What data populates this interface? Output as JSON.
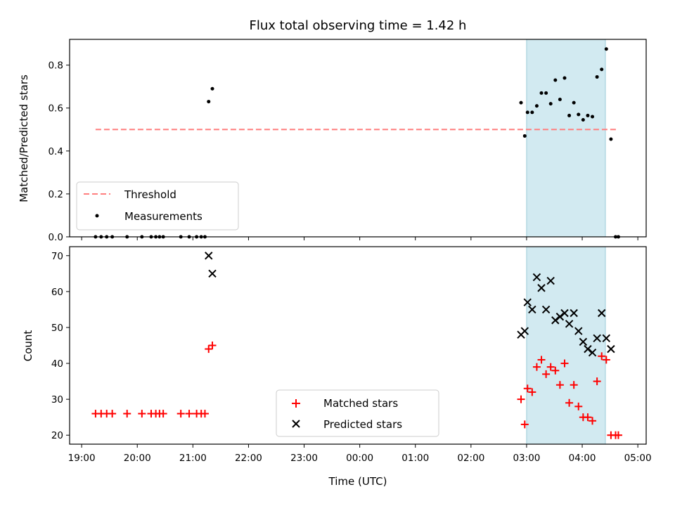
{
  "chart_data": [
    {
      "type": "scatter",
      "title": "Flux total observing time = 1.42 h",
      "ylabel": "Matched/Predicted stars",
      "ylim": [
        0,
        0.92
      ],
      "yticks": [
        "0.0",
        "0.2",
        "0.4",
        "0.6",
        "0.8"
      ],
      "xlim": [
        "2000-01-01T18:47",
        "2000-01-02T05:09"
      ],
      "shaded_interval": [
        "2000-01-02T03:00",
        "2000-01-02T04:25"
      ],
      "grid": false,
      "legend_position": "lower-left",
      "series": [
        {
          "name": "Threshold",
          "style": "dashed-line",
          "color": "#ff7f7f",
          "x": [
            "2000-01-01T19:15",
            "2000-01-02T04:37"
          ],
          "y": [
            0.5,
            0.5
          ]
        },
        {
          "name": "Measurements",
          "style": "dot",
          "color": "#000000",
          "points": [
            [
              "2000-01-01T19:15",
              0
            ],
            [
              "2000-01-01T19:21",
              0
            ],
            [
              "2000-01-01T19:27",
              0
            ],
            [
              "2000-01-01T19:33",
              0
            ],
            [
              "2000-01-01T19:49",
              0
            ],
            [
              "2000-01-01T20:05",
              0
            ],
            [
              "2000-01-01T20:15",
              0
            ],
            [
              "2000-01-01T20:20",
              0
            ],
            [
              "2000-01-01T20:24",
              0
            ],
            [
              "2000-01-01T20:28",
              0
            ],
            [
              "2000-01-01T20:47",
              0
            ],
            [
              "2000-01-01T20:56",
              0
            ],
            [
              "2000-01-01T21:04",
              0
            ],
            [
              "2000-01-01T21:09",
              0
            ],
            [
              "2000-01-01T21:13",
              0
            ],
            [
              "2000-01-01T21:17",
              0.63
            ],
            [
              "2000-01-01T21:21",
              0.69
            ],
            [
              "2000-01-02T02:54",
              0.625
            ],
            [
              "2000-01-02T02:58",
              0.47
            ],
            [
              "2000-01-02T03:01",
              0.58
            ],
            [
              "2000-01-02T03:06",
              0.58
            ],
            [
              "2000-01-02T03:11",
              0.61
            ],
            [
              "2000-01-02T03:16",
              0.67
            ],
            [
              "2000-01-02T03:21",
              0.67
            ],
            [
              "2000-01-02T03:26",
              0.62
            ],
            [
              "2000-01-02T03:31",
              0.73
            ],
            [
              "2000-01-02T03:36",
              0.64
            ],
            [
              "2000-01-02T03:41",
              0.74
            ],
            [
              "2000-01-02T03:46",
              0.565
            ],
            [
              "2000-01-02T03:51",
              0.625
            ],
            [
              "2000-01-02T03:56",
              0.57
            ],
            [
              "2000-01-02T04:01",
              0.545
            ],
            [
              "2000-01-02T04:06",
              0.565
            ],
            [
              "2000-01-02T04:11",
              0.56
            ],
            [
              "2000-01-02T04:16",
              0.745
            ],
            [
              "2000-01-02T04:21",
              0.78
            ],
            [
              "2000-01-02T04:26",
              0.875
            ],
            [
              "2000-01-02T04:31",
              0.455
            ],
            [
              "2000-01-02T04:36",
              0
            ],
            [
              "2000-01-02T04:39",
              0
            ]
          ]
        }
      ]
    },
    {
      "type": "scatter",
      "xlabel": "Time (UTC)",
      "ylabel": "Count",
      "ylim": [
        17.5,
        72.5
      ],
      "yticks": [
        "20",
        "30",
        "40",
        "50",
        "60",
        "70"
      ],
      "xlim": [
        "2000-01-01T18:47",
        "2000-01-02T05:09"
      ],
      "xticks": [
        {
          "x": "2000-01-01T19:00",
          "label": "19:00"
        },
        {
          "x": "2000-01-01T20:00",
          "label": "20:00"
        },
        {
          "x": "2000-01-01T21:00",
          "label": "21:00"
        },
        {
          "x": "2000-01-01T22:00",
          "label": "22:00"
        },
        {
          "x": "2000-01-01T23:00",
          "label": "23:00"
        },
        {
          "x": "2000-01-02T00:00",
          "label": "00:00"
        },
        {
          "x": "2000-01-02T01:00",
          "label": "01:00"
        },
        {
          "x": "2000-01-02T02:00",
          "label": "02:00"
        },
        {
          "x": "2000-01-02T03:00",
          "label": "03:00"
        },
        {
          "x": "2000-01-02T04:00",
          "label": "04:00"
        },
        {
          "x": "2000-01-02T05:00",
          "label": "05:00"
        }
      ],
      "shaded_interval": [
        "2000-01-02T03:00",
        "2000-01-02T04:25"
      ],
      "grid": false,
      "legend_position": "lower-center",
      "series": [
        {
          "name": "Matched stars",
          "marker": "plus",
          "color": "#ff0000",
          "points": [
            [
              "2000-01-01T19:15",
              26
            ],
            [
              "2000-01-01T19:21",
              26
            ],
            [
              "2000-01-01T19:27",
              26
            ],
            [
              "2000-01-01T19:33",
              26
            ],
            [
              "2000-01-01T19:49",
              26
            ],
            [
              "2000-01-01T20:05",
              26
            ],
            [
              "2000-01-01T20:15",
              26
            ],
            [
              "2000-01-01T20:20",
              26
            ],
            [
              "2000-01-01T20:24",
              26
            ],
            [
              "2000-01-01T20:28",
              26
            ],
            [
              "2000-01-01T20:47",
              26
            ],
            [
              "2000-01-01T20:56",
              26
            ],
            [
              "2000-01-01T21:04",
              26
            ],
            [
              "2000-01-01T21:09",
              26
            ],
            [
              "2000-01-01T21:13",
              26
            ],
            [
              "2000-01-01T21:17",
              44
            ],
            [
              "2000-01-01T21:21",
              45
            ],
            [
              "2000-01-02T02:54",
              30
            ],
            [
              "2000-01-02T02:58",
              23
            ],
            [
              "2000-01-02T03:01",
              33
            ],
            [
              "2000-01-02T03:06",
              32
            ],
            [
              "2000-01-02T03:11",
              39
            ],
            [
              "2000-01-02T03:16",
              41
            ],
            [
              "2000-01-02T03:21",
              37
            ],
            [
              "2000-01-02T03:26",
              39
            ],
            [
              "2000-01-02T03:31",
              38
            ],
            [
              "2000-01-02T03:36",
              34
            ],
            [
              "2000-01-02T03:41",
              40
            ],
            [
              "2000-01-02T03:46",
              29
            ],
            [
              "2000-01-02T03:51",
              34
            ],
            [
              "2000-01-02T03:56",
              28
            ],
            [
              "2000-01-02T04:01",
              25
            ],
            [
              "2000-01-02T04:06",
              25
            ],
            [
              "2000-01-02T04:11",
              24
            ],
            [
              "2000-01-02T04:16",
              35
            ],
            [
              "2000-01-02T04:21",
              42
            ],
            [
              "2000-01-02T04:26",
              41
            ],
            [
              "2000-01-02T04:31",
              20
            ],
            [
              "2000-01-02T04:36",
              20
            ],
            [
              "2000-01-02T04:39",
              20
            ]
          ]
        },
        {
          "name": "Predicted stars",
          "marker": "x",
          "color": "#000000",
          "points": [
            [
              "2000-01-01T21:17",
              70
            ],
            [
              "2000-01-01T21:21",
              65
            ],
            [
              "2000-01-02T02:54",
              48
            ],
            [
              "2000-01-02T02:58",
              49
            ],
            [
              "2000-01-02T03:01",
              57
            ],
            [
              "2000-01-02T03:06",
              55
            ],
            [
              "2000-01-02T03:11",
              64
            ],
            [
              "2000-01-02T03:16",
              61
            ],
            [
              "2000-01-02T03:21",
              55
            ],
            [
              "2000-01-02T03:26",
              63
            ],
            [
              "2000-01-02T03:31",
              52
            ],
            [
              "2000-01-02T03:36",
              53
            ],
            [
              "2000-01-02T03:41",
              54
            ],
            [
              "2000-01-02T03:46",
              51
            ],
            [
              "2000-01-02T03:51",
              54
            ],
            [
              "2000-01-02T03:56",
              49
            ],
            [
              "2000-01-02T04:01",
              46
            ],
            [
              "2000-01-02T04:06",
              44
            ],
            [
              "2000-01-02T04:11",
              43
            ],
            [
              "2000-01-02T04:16",
              47
            ],
            [
              "2000-01-02T04:21",
              54
            ],
            [
              "2000-01-02T04:26",
              47
            ],
            [
              "2000-01-02T04:31",
              44
            ]
          ]
        }
      ]
    }
  ]
}
